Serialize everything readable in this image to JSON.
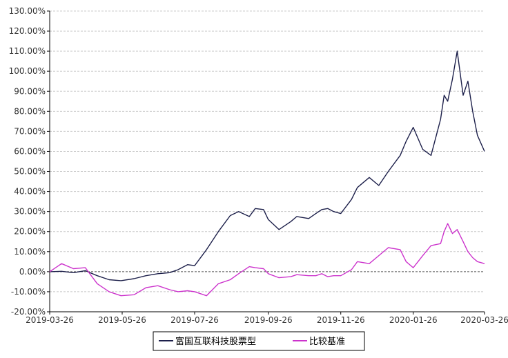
{
  "chart_data": {
    "type": "line",
    "ylim": [
      -20,
      130
    ],
    "yticks": [
      -20,
      -10,
      0,
      10,
      20,
      30,
      40,
      50,
      60,
      70,
      80,
      90,
      100,
      110,
      120,
      130
    ],
    "ytick_labels": [
      "-20.00%",
      "-10.00%",
      "0.00%",
      "10.00%",
      "20.00%",
      "30.00%",
      "40.00%",
      "50.00%",
      "60.00%",
      "70.00%",
      "80.00%",
      "90.00%",
      "100.00%",
      "110.00%",
      "120.00%",
      "130.00%"
    ],
    "xlim": [
      "2019-03-26",
      "2020-03-26"
    ],
    "xticks": [
      "2019-03-26",
      "2019-05-26",
      "2019-07-26",
      "2019-09-26",
      "2019-11-26",
      "2020-01-26",
      "2020-03-26"
    ],
    "grid": "horizontal-dashed",
    "legend_position": "bottom",
    "series": [
      {
        "name": "富国互联科技股票型",
        "color": "#1c1f4a",
        "x": [
          "2019-03-26",
          "2019-04-05",
          "2019-04-15",
          "2019-04-25",
          "2019-05-05",
          "2019-05-15",
          "2019-05-25",
          "2019-06-05",
          "2019-06-15",
          "2019-06-25",
          "2019-07-05",
          "2019-07-12",
          "2019-07-20",
          "2019-07-26",
          "2019-08-05",
          "2019-08-15",
          "2019-08-25",
          "2019-09-01",
          "2019-09-10",
          "2019-09-15",
          "2019-09-22",
          "2019-09-26",
          "2019-10-05",
          "2019-10-15",
          "2019-10-20",
          "2019-10-30",
          "2019-11-05",
          "2019-11-10",
          "2019-11-15",
          "2019-11-20",
          "2019-11-26",
          "2019-12-05",
          "2019-12-10",
          "2019-12-20",
          "2019-12-28",
          "2020-01-05",
          "2020-01-15",
          "2020-01-20",
          "2020-01-26",
          "2020-02-03",
          "2020-02-10",
          "2020-02-18",
          "2020-02-21",
          "2020-02-24",
          "2020-02-28",
          "2020-03-03",
          "2020-03-08",
          "2020-03-12",
          "2020-03-16",
          "2020-03-20",
          "2020-03-26"
        ],
        "values": [
          0.0,
          0.2,
          -0.5,
          0.5,
          -2.0,
          -4.0,
          -4.5,
          -3.5,
          -2.0,
          -1.0,
          -0.5,
          1.0,
          3.5,
          3.0,
          11.0,
          20.0,
          28.0,
          30.0,
          27.5,
          31.5,
          31.0,
          26.0,
          21.0,
          25.0,
          27.5,
          26.5,
          29.0,
          31.0,
          31.5,
          30.0,
          29.0,
          36.0,
          42.0,
          47.0,
          43.0,
          50.0,
          58.0,
          65.0,
          72.0,
          61.0,
          58.0,
          76.0,
          88.0,
          85.0,
          96.0,
          110.0,
          88.0,
          95.0,
          80.0,
          68.0,
          60.0
        ]
      },
      {
        "name": "比较基准",
        "color": "#cc33cc",
        "x": [
          "2019-03-26",
          "2019-04-05",
          "2019-04-15",
          "2019-04-25",
          "2019-05-05",
          "2019-05-15",
          "2019-05-25",
          "2019-06-05",
          "2019-06-15",
          "2019-06-25",
          "2019-07-05",
          "2019-07-12",
          "2019-07-20",
          "2019-07-26",
          "2019-08-05",
          "2019-08-15",
          "2019-08-25",
          "2019-09-01",
          "2019-09-10",
          "2019-09-15",
          "2019-09-22",
          "2019-09-26",
          "2019-10-05",
          "2019-10-15",
          "2019-10-20",
          "2019-10-30",
          "2019-11-05",
          "2019-11-10",
          "2019-11-15",
          "2019-11-20",
          "2019-11-26",
          "2019-12-05",
          "2019-12-10",
          "2019-12-20",
          "2019-12-28",
          "2020-01-05",
          "2020-01-15",
          "2020-01-20",
          "2020-01-26",
          "2020-02-03",
          "2020-02-10",
          "2020-02-18",
          "2020-02-21",
          "2020-02-24",
          "2020-02-28",
          "2020-03-03",
          "2020-03-08",
          "2020-03-12",
          "2020-03-16",
          "2020-03-20",
          "2020-03-26"
        ],
        "values": [
          0.0,
          4.0,
          1.5,
          2.0,
          -6.0,
          -10.0,
          -12.0,
          -11.5,
          -8.0,
          -7.0,
          -9.0,
          -10.0,
          -9.5,
          -10.0,
          -12.0,
          -6.0,
          -4.0,
          -1.0,
          2.5,
          2.0,
          1.5,
          -1.0,
          -3.0,
          -2.5,
          -1.5,
          -2.0,
          -2.0,
          -1.0,
          -2.5,
          -2.0,
          -2.0,
          1.0,
          5.0,
          4.0,
          8.0,
          12.0,
          11.0,
          5.0,
          2.0,
          8.0,
          13.0,
          14.0,
          20.0,
          24.0,
          19.0,
          21.0,
          15.0,
          10.0,
          7.0,
          5.0,
          4.0
        ]
      }
    ]
  }
}
